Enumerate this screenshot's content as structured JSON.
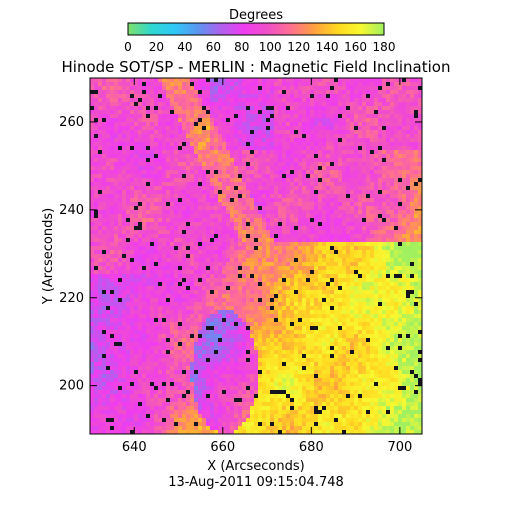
{
  "chart_data": {
    "type": "heatmap",
    "title": "Hinode SOT/SP - MERLIN : Magnetic Field Inclination",
    "xlabel": "X (Arcseconds)",
    "ylabel": "Y (Arcseconds)",
    "xlim": [
      630,
      705
    ],
    "ylim": [
      189,
      270
    ],
    "x_ticks": [
      "640",
      "660",
      "680",
      "700"
    ],
    "x_tick_values": [
      640,
      660,
      680,
      700
    ],
    "y_ticks": [
      "200",
      "220",
      "240",
      "260"
    ],
    "y_tick_values": [
      200,
      220,
      240,
      260
    ],
    "timestamp": "13-Aug-2011 09:15:04.748",
    "colorbar": {
      "label": "Degrees",
      "range": [
        0,
        180
      ],
      "ticks": [
        "0",
        "20",
        "40",
        "60",
        "80",
        "100",
        "120",
        "140",
        "160",
        "180"
      ],
      "tick_values": [
        0,
        20,
        40,
        60,
        80,
        100,
        120,
        140,
        160,
        180
      ],
      "colors": [
        "#7fe06a",
        "#2fd8d0",
        "#30c8f8",
        "#5a96f0",
        "#b060ee",
        "#f03cf0",
        "#f050c8",
        "#ff7090",
        "#ffa040",
        "#ffd820",
        "#f8f830",
        "#a0f060"
      ]
    },
    "grid": false,
    "legend": "none"
  }
}
